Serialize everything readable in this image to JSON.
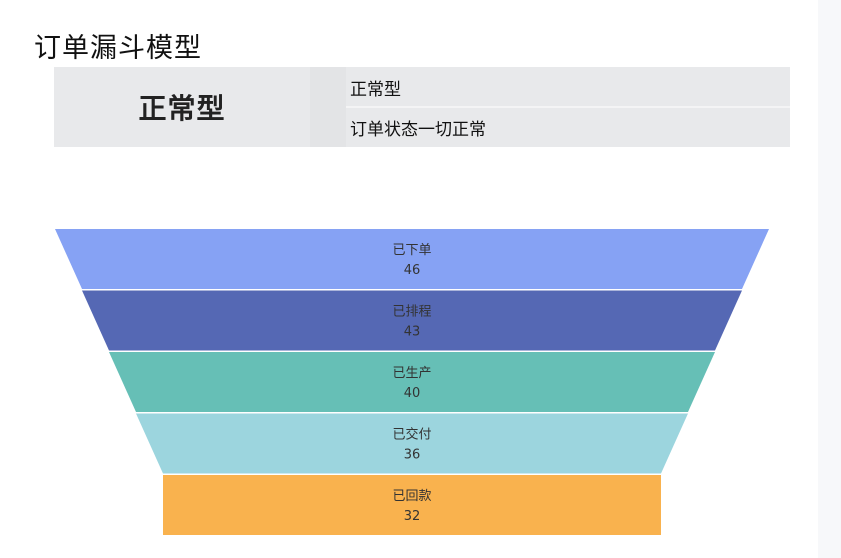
{
  "title": "订单漏斗模型",
  "info": {
    "type": "正常型",
    "name": "正常型",
    "description": "订单状态一切正常"
  },
  "chart_data": {
    "type": "funnel",
    "title": "",
    "stages": [
      {
        "label": "已下单",
        "value": 46,
        "color": "#86a2f4"
      },
      {
        "label": "已排程",
        "value": 43,
        "color": "#5568b4"
      },
      {
        "label": "已生产",
        "value": 40,
        "color": "#66bfb6"
      },
      {
        "label": "已交付",
        "value": 36,
        "color": "#9cd5de"
      },
      {
        "label": "已回款",
        "value": 32,
        "color": "#f9b24e"
      }
    ]
  }
}
